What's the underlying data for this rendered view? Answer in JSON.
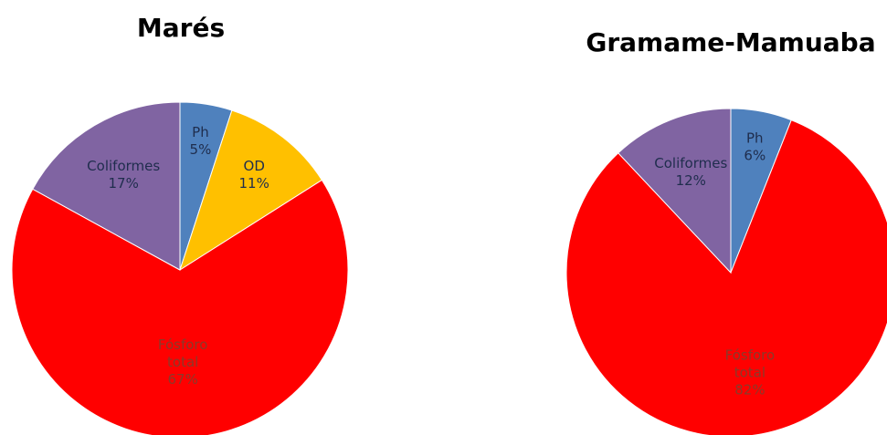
{
  "chart_data": [
    {
      "type": "pie",
      "title": "Marés",
      "start_angle_deg": 0,
      "direction": "clockwise",
      "slices": [
        {
          "label": "Ph",
          "value": 5,
          "value_label": "5%",
          "color": "#4F81BD",
          "label_color": "#1F2D4D",
          "label_lines": [
            "Ph",
            "5%"
          ]
        },
        {
          "label": "OD",
          "value": 11,
          "value_label": "11%",
          "color": "#FFC000",
          "label_color": "#1F2D4D",
          "label_lines": [
            "OD",
            "11%"
          ]
        },
        {
          "label": "Fósforo total",
          "value": 67,
          "value_label": "67%",
          "color": "#FF0000",
          "label_color": "#8A3A2A",
          "label_lines": [
            "Fósforo",
            "total",
            "67%"
          ]
        },
        {
          "label": "Coliformes",
          "value": 17,
          "value_label": "17%",
          "color": "#8064A2",
          "label_color": "#1F2D4D",
          "label_lines": [
            "Coliformes",
            "17%"
          ]
        }
      ]
    },
    {
      "type": "pie",
      "title": "Gramame-Mamuaba",
      "start_angle_deg": 0,
      "direction": "clockwise",
      "slices": [
        {
          "label": "Ph",
          "value": 6,
          "value_label": "6%",
          "color": "#4F81BD",
          "label_color": "#1F2D4D",
          "label_lines": [
            "Ph",
            "6%"
          ]
        },
        {
          "label": "Fósforo total",
          "value": 82,
          "value_label": "82%",
          "color": "#FF0000",
          "label_color": "#8A3A2A",
          "label_lines": [
            "Fósforo",
            "total",
            "82%"
          ]
        },
        {
          "label": "Coliformes",
          "value": 12,
          "value_label": "12%",
          "color": "#8064A2",
          "label_color": "#1F2D4D",
          "label_lines": [
            "Coliformes",
            "12%"
          ]
        }
      ]
    }
  ]
}
